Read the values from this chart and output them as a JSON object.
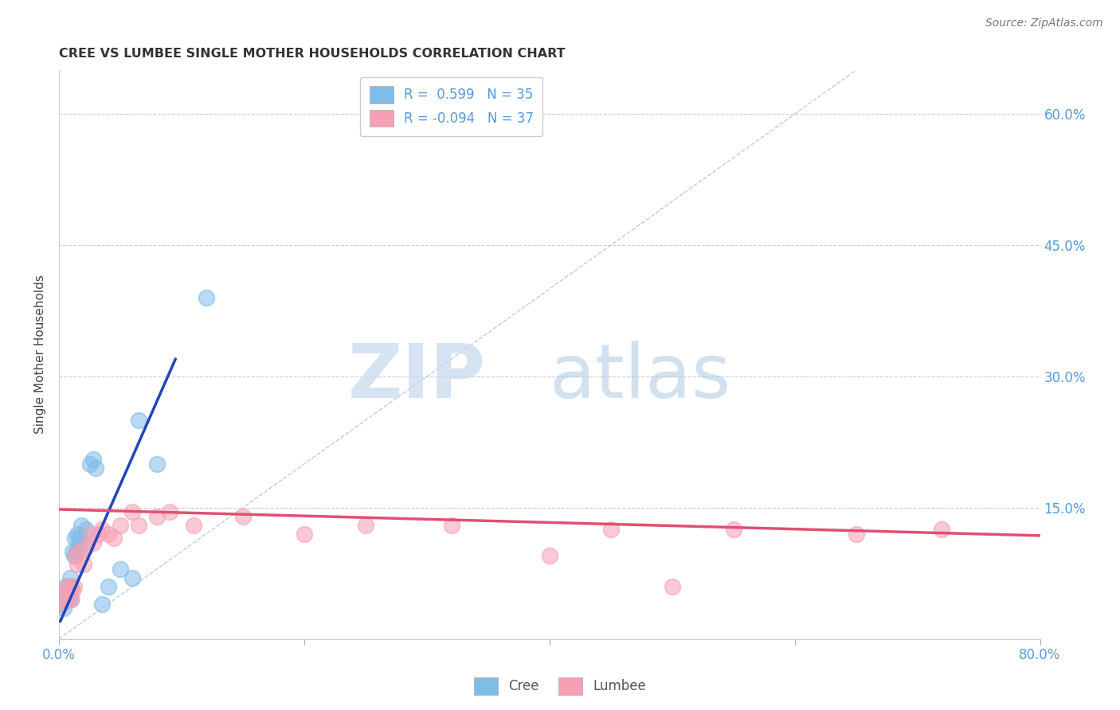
{
  "title": "CREE VS LUMBEE SINGLE MOTHER HOUSEHOLDS CORRELATION CHART",
  "source": "Source: ZipAtlas.com",
  "ylabel": "Single Mother Households",
  "tick_color": "#5599dd",
  "xlim": [
    0.0,
    0.8
  ],
  "ylim": [
    0.0,
    0.65
  ],
  "xticks": [
    0.0,
    0.2,
    0.4,
    0.6,
    0.8
  ],
  "yticks": [
    0.0,
    0.15,
    0.3,
    0.45,
    0.6
  ],
  "background_color": "#ffffff",
  "grid_color": "#cccccc",
  "watermark_zip": "ZIP",
  "watermark_atlas": "atlas",
  "legend_r1": "R =  0.599",
  "legend_n1": "N = 35",
  "legend_r2": "R = -0.094",
  "legend_n2": "N = 37",
  "cree_color": "#80bce8",
  "lumbee_color": "#f5a0b5",
  "cree_line_color": "#2244bb",
  "lumbee_line_color": "#e05070",
  "diagonal_color": "#b0c8e0",
  "cree_points_x": [
    0.002,
    0.003,
    0.004,
    0.005,
    0.005,
    0.006,
    0.006,
    0.007,
    0.007,
    0.008,
    0.008,
    0.009,
    0.009,
    0.01,
    0.01,
    0.011,
    0.012,
    0.013,
    0.014,
    0.015,
    0.016,
    0.017,
    0.018,
    0.02,
    0.022,
    0.025,
    0.028,
    0.03,
    0.035,
    0.04,
    0.05,
    0.06,
    0.065,
    0.08,
    0.12
  ],
  "cree_points_y": [
    0.04,
    0.045,
    0.035,
    0.05,
    0.06,
    0.045,
    0.055,
    0.05,
    0.06,
    0.045,
    0.055,
    0.06,
    0.07,
    0.045,
    0.06,
    0.1,
    0.095,
    0.115,
    0.1,
    0.12,
    0.11,
    0.115,
    0.13,
    0.11,
    0.125,
    0.2,
    0.205,
    0.195,
    0.04,
    0.06,
    0.08,
    0.07,
    0.25,
    0.2,
    0.39
  ],
  "lumbee_points_x": [
    0.002,
    0.004,
    0.005,
    0.006,
    0.007,
    0.008,
    0.009,
    0.01,
    0.011,
    0.012,
    0.013,
    0.015,
    0.017,
    0.02,
    0.022,
    0.025,
    0.028,
    0.032,
    0.035,
    0.04,
    0.045,
    0.05,
    0.06,
    0.065,
    0.08,
    0.09,
    0.11,
    0.15,
    0.2,
    0.25,
    0.32,
    0.4,
    0.45,
    0.5,
    0.55,
    0.65,
    0.72
  ],
  "lumbee_points_y": [
    0.04,
    0.05,
    0.045,
    0.055,
    0.06,
    0.05,
    0.06,
    0.045,
    0.055,
    0.06,
    0.095,
    0.085,
    0.1,
    0.085,
    0.105,
    0.12,
    0.11,
    0.12,
    0.125,
    0.12,
    0.115,
    0.13,
    0.145,
    0.13,
    0.14,
    0.145,
    0.13,
    0.14,
    0.12,
    0.13,
    0.13,
    0.095,
    0.125,
    0.06,
    0.125,
    0.12,
    0.125
  ],
  "cree_line_x": [
    0.001,
    0.095
  ],
  "cree_line_y": [
    0.02,
    0.32
  ],
  "lumbee_line_x": [
    0.0,
    0.8
  ],
  "lumbee_line_y": [
    0.148,
    0.118
  ],
  "diag_line_x": [
    0.0,
    0.65
  ],
  "diag_line_y": [
    0.0,
    0.65
  ]
}
